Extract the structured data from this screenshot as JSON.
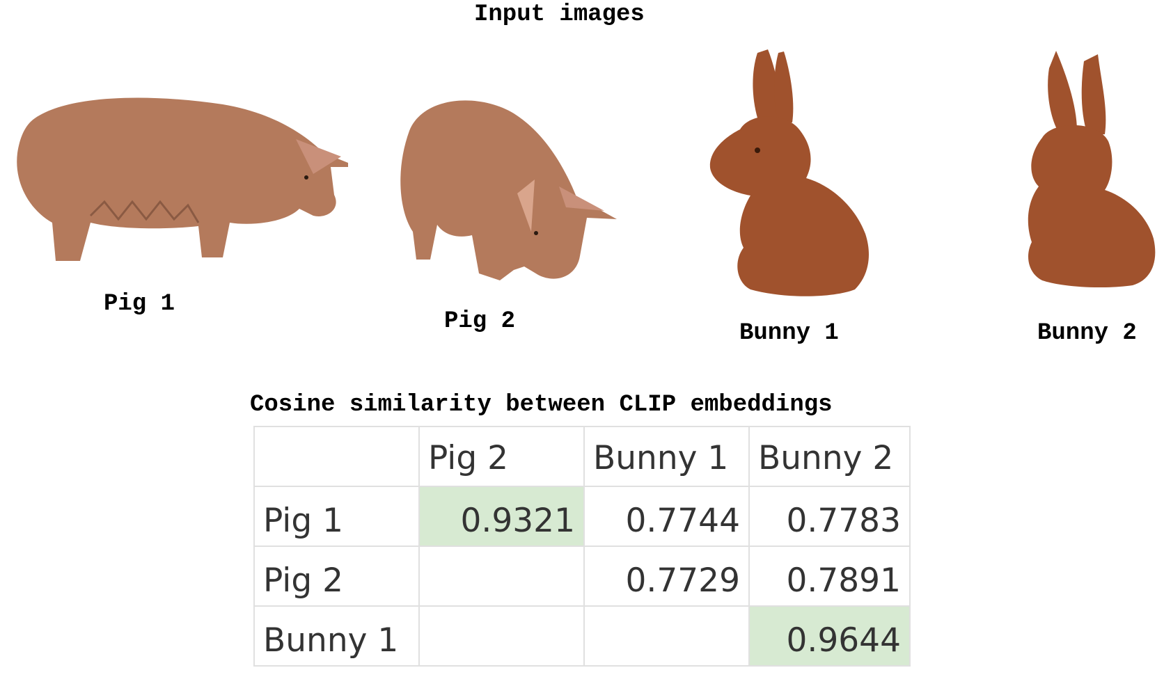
{
  "input_heading": "Input images",
  "images": [
    {
      "caption": "Pig 1",
      "subject": "pig",
      "icon": "pig-figurine"
    },
    {
      "caption": "Pig 2",
      "subject": "pig",
      "icon": "pig-figurine"
    },
    {
      "caption": "Bunny 1",
      "subject": "bunny",
      "icon": "bunny-figurine"
    },
    {
      "caption": "Bunny 2",
      "subject": "bunny",
      "icon": "bunny-figurine"
    }
  ],
  "table": {
    "title": "Cosine similarity between CLIP embeddings",
    "col_headers": [
      "",
      "Pig 2",
      "Bunny 1",
      "Bunny 2"
    ],
    "rows": [
      {
        "label": "Pig 1",
        "cells": [
          "0.9321",
          "0.7744",
          "0.7783"
        ]
      },
      {
        "label": "Pig 2",
        "cells": [
          "",
          "0.7729",
          "0.7891"
        ]
      },
      {
        "label": "Bunny 1",
        "cells": [
          "",
          "",
          "0.9644"
        ]
      }
    ],
    "highlight_color": "#d7ead2"
  },
  "colors": {
    "pig": "#b47a5c",
    "pig_shadow": "#8a5a43",
    "bunny": "#a0522d",
    "bunny_shadow": "#7a3a1c"
  }
}
